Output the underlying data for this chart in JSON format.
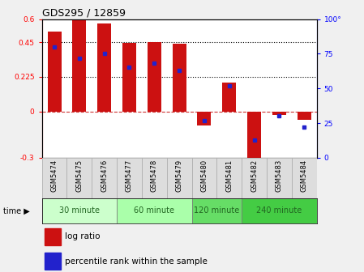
{
  "title": "GDS295 / 12859",
  "samples": [
    "GSM5474",
    "GSM5475",
    "GSM5476",
    "GSM5477",
    "GSM5478",
    "GSM5479",
    "GSM5480",
    "GSM5481",
    "GSM5482",
    "GSM5483",
    "GSM5484"
  ],
  "log_ratio": [
    0.52,
    0.6,
    0.57,
    0.445,
    0.45,
    0.44,
    -0.09,
    0.19,
    -0.37,
    -0.02,
    -0.055
  ],
  "percentile": [
    80,
    72,
    75,
    65,
    68,
    63,
    27,
    52,
    13,
    30,
    22
  ],
  "groups": [
    {
      "label": "30 minute",
      "start": 0,
      "end": 3,
      "color": "#ccffcc"
    },
    {
      "label": "60 minute",
      "start": 3,
      "end": 6,
      "color": "#aaffaa"
    },
    {
      "label": "120 minute",
      "start": 6,
      "end": 8,
      "color": "#66dd66"
    },
    {
      "label": "240 minute",
      "start": 8,
      "end": 11,
      "color": "#44cc44"
    }
  ],
  "bar_color": "#cc1111",
  "dot_color": "#2222cc",
  "ylim_left": [
    -0.3,
    0.6
  ],
  "ylim_right": [
    0,
    100
  ],
  "yticks_left": [
    -0.3,
    0,
    0.225,
    0.45,
    0.6
  ],
  "yticks_right": [
    0,
    25,
    50,
    75,
    100
  ],
  "hlines": [
    0.225,
    0.45
  ],
  "fig_bg": "#f0f0f0",
  "plot_bg": "#ffffff",
  "label_bg": "#dddddd",
  "bar_width": 0.55
}
